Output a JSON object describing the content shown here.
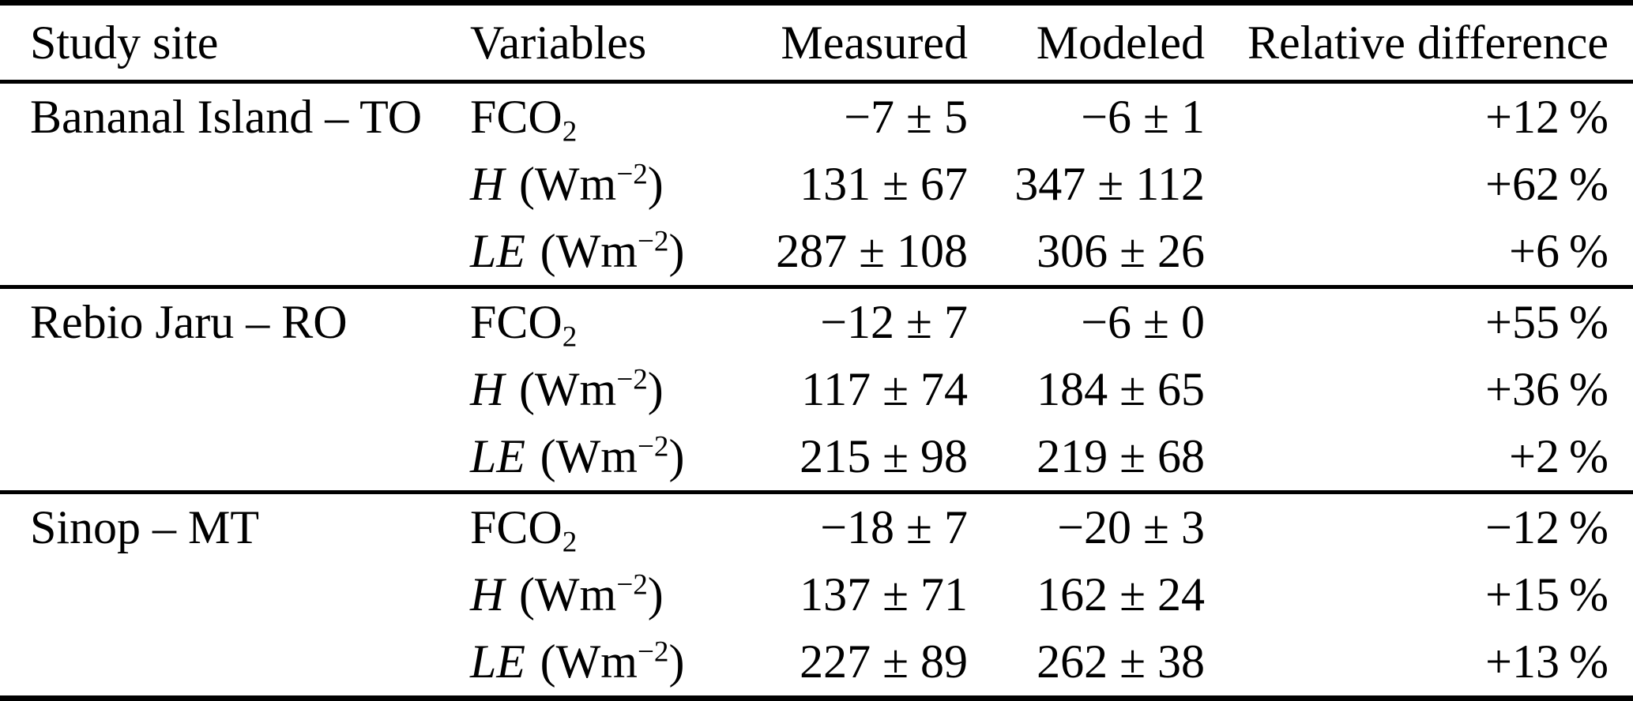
{
  "table": {
    "headers": [
      "Study site",
      "Variables",
      "Measured",
      "Modeled",
      "Relative difference"
    ],
    "groups": [
      {
        "site": "Bananal Island – TO",
        "rows": [
          {
            "variable": {
              "roman": "FCO",
              "sub": "2",
              "italic": "",
              "unit_pre": "",
              "sup": "",
              "unit_post": ""
            },
            "measured": "−7 ± 5",
            "modeled": "−6 ± 1",
            "relative_difference": "+12 %"
          },
          {
            "variable": {
              "roman": "",
              "sub": "",
              "italic": "H",
              "unit_pre": " (Wm",
              "sup": "−2",
              "unit_post": ")"
            },
            "measured": "131 ± 67",
            "modeled": "347 ± 112",
            "relative_difference": "+62 %"
          },
          {
            "variable": {
              "roman": "",
              "sub": "",
              "italic": "LE",
              "unit_pre": " (Wm",
              "sup": "−2",
              "unit_post": ")"
            },
            "measured": "287 ± 108",
            "modeled": "306 ± 26",
            "relative_difference": "+6 %"
          }
        ]
      },
      {
        "site": "Rebio Jaru – RO",
        "rows": [
          {
            "variable": {
              "roman": "FCO",
              "sub": "2",
              "italic": "",
              "unit_pre": "",
              "sup": "",
              "unit_post": ""
            },
            "measured": "−12 ± 7",
            "modeled": "−6 ± 0",
            "relative_difference": "+55 %"
          },
          {
            "variable": {
              "roman": "",
              "sub": "",
              "italic": "H",
              "unit_pre": " (Wm",
              "sup": "−2",
              "unit_post": ")"
            },
            "measured": "117 ± 74",
            "modeled": "184 ± 65",
            "relative_difference": "+36 %"
          },
          {
            "variable": {
              "roman": "",
              "sub": "",
              "italic": "LE",
              "unit_pre": " (Wm",
              "sup": "−2",
              "unit_post": ")"
            },
            "measured": "215 ± 98",
            "modeled": "219 ± 68",
            "relative_difference": "+2 %"
          }
        ]
      },
      {
        "site": "Sinop – MT",
        "rows": [
          {
            "variable": {
              "roman": "FCO",
              "sub": "2",
              "italic": "",
              "unit_pre": "",
              "sup": "",
              "unit_post": ""
            },
            "measured": "−18 ± 7",
            "modeled": "−20 ± 3",
            "relative_difference": "−12 %"
          },
          {
            "variable": {
              "roman": "",
              "sub": "",
              "italic": "H",
              "unit_pre": " (Wm",
              "sup": "−2",
              "unit_post": ")"
            },
            "measured": "137 ± 71",
            "modeled": "162 ± 24",
            "relative_difference": "+15 %"
          },
          {
            "variable": {
              "roman": "",
              "sub": "",
              "italic": "LE",
              "unit_pre": " (Wm",
              "sup": "−2",
              "unit_post": ")"
            },
            "measured": "227 ± 89",
            "modeled": "262 ± 38",
            "relative_difference": "+13 %"
          }
        ]
      }
    ]
  },
  "chart_data": {
    "type": "table",
    "title": "",
    "columns": [
      "Study site",
      "Variables",
      "Measured",
      "Modeled",
      "Relative difference"
    ],
    "rows": [
      [
        "Bananal Island – TO",
        "FCO2",
        "−7 ± 5",
        "−6 ± 1",
        "+12 %"
      ],
      [
        "",
        "H (Wm−2)",
        "131 ± 67",
        "347 ± 112",
        "+62 %"
      ],
      [
        "",
        "LE (Wm−2)",
        "287 ± 108",
        "306 ± 26",
        "+6 %"
      ],
      [
        "Rebio Jaru – RO",
        "FCO2",
        "−12 ± 7",
        "−6 ± 0",
        "+55 %"
      ],
      [
        "",
        "H (Wm−2)",
        "117 ± 74",
        "184 ± 65",
        "+36 %"
      ],
      [
        "",
        "LE (Wm−2)",
        "215 ± 98",
        "219 ± 68",
        "+2 %"
      ],
      [
        "Sinop – MT",
        "FCO2",
        "−18 ± 7",
        "−20 ± 3",
        "−12 %"
      ],
      [
        "",
        "H (Wm−2)",
        "137 ± 71",
        "162 ± 24",
        "+15 %"
      ],
      [
        "",
        "LE (Wm−2)",
        "227 ± 89",
        "262 ± 38",
        "+13 %"
      ]
    ]
  }
}
